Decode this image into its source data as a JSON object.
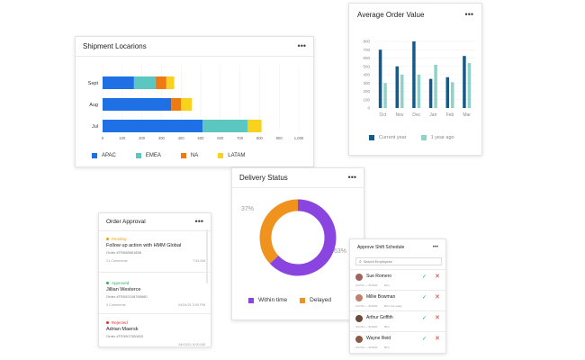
{
  "shipment": {
    "title": "Shipment Locarions",
    "menu": "•••",
    "legend": [
      {
        "name": "APAC",
        "color": "#1f6fe5"
      },
      {
        "name": "EMEA",
        "color": "#5cc6c0"
      },
      {
        "name": "NA",
        "color": "#f07a12"
      },
      {
        "name": "LATAM",
        "color": "#f8d21c"
      }
    ]
  },
  "aov": {
    "title": "Average Order Value",
    "menu": "•••",
    "legend": [
      {
        "name": "Current year",
        "color": "#155a8a"
      },
      {
        "name": "1 year ago",
        "color": "#8fd3c8"
      }
    ]
  },
  "delivery": {
    "title": "Delivery Status",
    "menu": "•••",
    "pct_delayed": "37%",
    "pct_within": "63%",
    "legend": [
      {
        "name": "Within time",
        "color": "#8a45e0"
      },
      {
        "name": "Delayed",
        "color": "#f0921e"
      }
    ]
  },
  "orders": {
    "title": "Order Approval",
    "menu": "•••",
    "items": [
      {
        "status": "Pending",
        "status_color": "#e8a317",
        "title": "Follow up action with HMM Global",
        "sub": "Order #TR658661858",
        "comments": "21 Comments",
        "time": "7:54 AM"
      },
      {
        "status": "Approved",
        "status_color": "#2eaf5a",
        "title": "Jillian Westerce",
        "sub": "Order #TR002108785980",
        "comments": "0 Comments",
        "time": "04/24/21 2:00 PM"
      },
      {
        "status": "Rejected",
        "status_color": "#e03131",
        "title": "Adrian Maersk",
        "sub": "Order #TR3907300810",
        "comments": "",
        "time": "04/03/21 8:00 AM"
      }
    ]
  },
  "shift": {
    "title": "Approve Shift Schedule",
    "menu": "•••",
    "search_placeholder": "Search Employees",
    "people": [
      {
        "name": "Sue Romero",
        "meta": "4/17/21 — 8/30/21",
        "meta2": "8hrs",
        "avatar": "#a0645a"
      },
      {
        "name": "Millie Bowman",
        "meta": "4/17/21 — 8/30/21",
        "meta2": "8hrs   Not ready",
        "avatar": "#c0806a"
      },
      {
        "name": "Arthur Griffith",
        "meta": "4/17/21 — 8/30/21",
        "meta2": "8hrs",
        "avatar": "#6b4a3a"
      },
      {
        "name": "Wayne Reid",
        "meta": "4/17/21 — 8/30/21",
        "meta2": "8hrs",
        "avatar": "#8a5a48"
      }
    ],
    "approve_glyph": "✓",
    "reject_glyph": "✕"
  },
  "chart_data": [
    {
      "type": "bar",
      "orientation": "horizontal",
      "stacked": true,
      "title": "Shipment Locarions",
      "categories": [
        "Sept",
        "Aug",
        "Jul"
      ],
      "series": [
        {
          "name": "APAC",
          "values": [
            160,
            350,
            510
          ]
        },
        {
          "name": "EMEA",
          "values": [
            110,
            0,
            230
          ]
        },
        {
          "name": "NA",
          "values": [
            55,
            50,
            0
          ]
        },
        {
          "name": "LATAM",
          "values": [
            40,
            55,
            70
          ]
        }
      ],
      "xlim": [
        0,
        1000
      ],
      "xticks": [
        "0",
        "100",
        "200",
        "300",
        "400",
        "500",
        "600",
        "700",
        "800",
        "900",
        "1,000"
      ],
      "grid": true,
      "legend": "bottom"
    },
    {
      "type": "bar",
      "title": "Average Order Value",
      "categories": [
        "Oct",
        "Nov",
        "Dec",
        "Jan",
        "Feb",
        "Mar"
      ],
      "series": [
        {
          "name": "Current year",
          "values": [
            700,
            500,
            800,
            350,
            370,
            625
          ]
        },
        {
          "name": "1 year ago",
          "values": [
            300,
            400,
            400,
            520,
            310,
            540
          ]
        }
      ],
      "ylim": [
        0,
        800
      ],
      "yticks": [
        "0",
        "100",
        "200",
        "300",
        "400",
        "500",
        "600",
        "700",
        "800"
      ],
      "grid": true,
      "legend": "bottom"
    },
    {
      "type": "pie",
      "donut": true,
      "title": "Delivery Status",
      "labels": [
        "Within time",
        "Delayed"
      ],
      "values": [
        63,
        37
      ],
      "legend": "bottom"
    }
  ]
}
